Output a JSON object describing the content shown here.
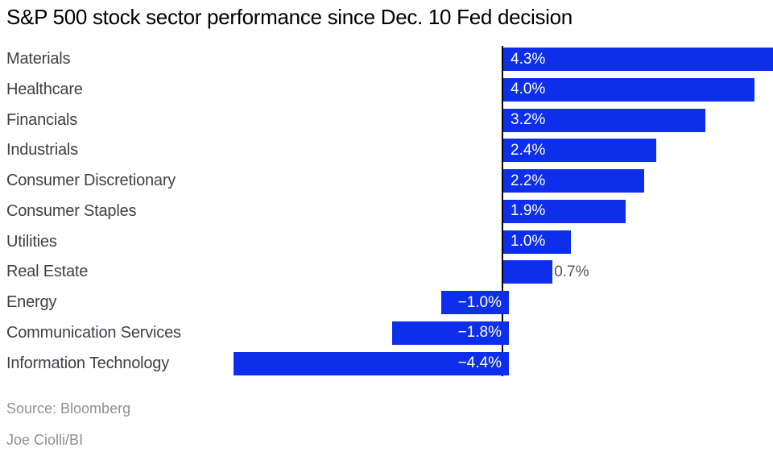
{
  "title": "S&P 500 stock sector performance since Dec. 10 Fed decision",
  "footer": {
    "source": "Source: Bloomberg",
    "byline": "Joe Ciolli/BI"
  },
  "colors": {
    "bar": "#0d2eea",
    "axis": "#000000",
    "title_text": "#000000",
    "category_text": "#3f4142",
    "value_inside_text": "#ffffff",
    "value_outside_text": "#55595b",
    "footer_text": "#8e9091",
    "background": "#ffffff"
  },
  "chart_data": {
    "type": "bar",
    "orientation": "horizontal",
    "title": "S&P 500 stock sector performance since Dec. 10 Fed decision",
    "categories": [
      "Materials",
      "Healthcare",
      "Financials",
      "Industrials",
      "Consumer Discretionary",
      "Consumer Staples",
      "Utilities",
      "Real Estate",
      "Energy",
      "Communication Services",
      "Information Technology"
    ],
    "values": [
      4.3,
      4.0,
      3.2,
      2.4,
      2.2,
      1.9,
      1.0,
      0.7,
      -1.0,
      -1.8,
      -4.4
    ],
    "value_labels": [
      "4.3%",
      "4.0%",
      "3.2%",
      "2.4%",
      "2.2%",
      "1.9%",
      "1.0%",
      "0.7%",
      "−1.0%",
      "−1.8%",
      "−4.4%"
    ],
    "unit": "%",
    "xlabel": "",
    "ylabel": "",
    "xlim": [
      -4.4,
      4.3
    ],
    "grid": false,
    "legend": false,
    "zero_baseline": true,
    "value_label_placement": "inside bar adjacent to zero axis; outside bar end for short 0.7% bar",
    "sort_order": "descending"
  }
}
